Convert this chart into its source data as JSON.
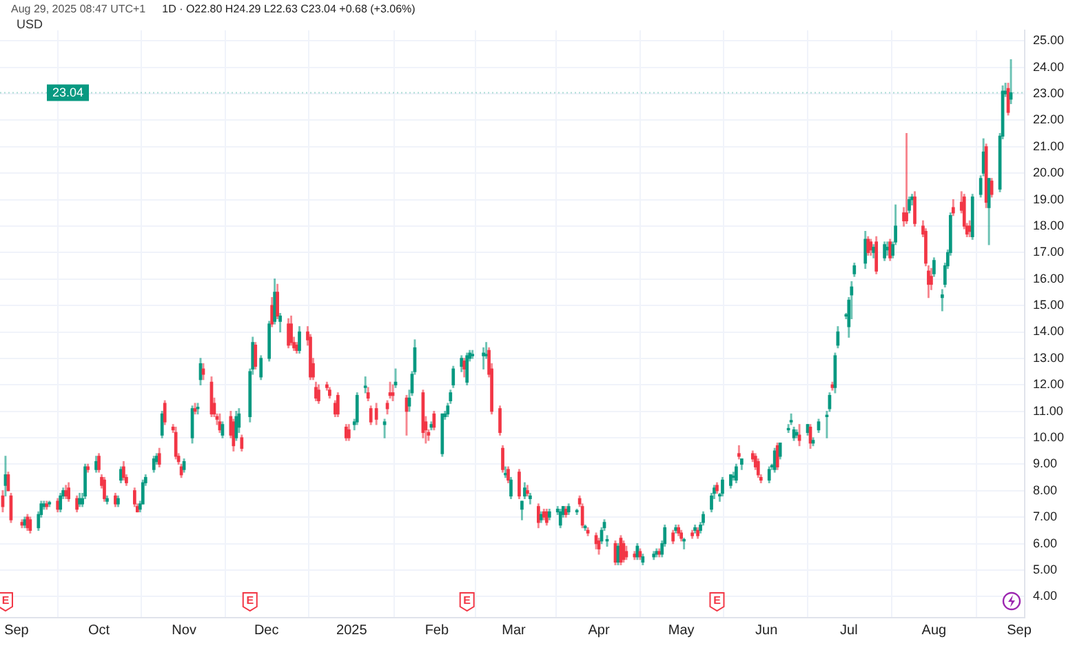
{
  "chart_data": {
    "type": "candlestick",
    "subtitle": "1D · O22.80 H24.29 L22.63 C23.04 +0.68 (+3.06%)",
    "ylabel": "USD",
    "annotations": [
      "Aug 29, 2025 08:47 UTC+1",
      {
        "text": "E",
        "x": "2024-08-28"
      },
      {
        "text": "E",
        "x": "2024-11-25"
      },
      {
        "text": "E",
        "x": "2025-02-12"
      },
      {
        "text": "E",
        "x": "2025-05-14"
      }
    ],
    "ref_lines": [
      {
        "axis": "y",
        "value": 23.04,
        "label": "23.04",
        "color": "#089981",
        "line_style": "dotted"
      }
    ],
    "grid": true,
    "xlim": [
      "2024-08-26",
      "2025-09-03"
    ],
    "xticks": [
      {
        "value": "2024-09-01",
        "label": "Sep"
      },
      {
        "value": "2024-10-01",
        "label": "Oct"
      },
      {
        "value": "2024-11-01",
        "label": "Nov"
      },
      {
        "value": "2024-12-01",
        "label": "Dec"
      },
      {
        "value": "2025-01-01",
        "label": "2025"
      },
      {
        "value": "2025-02-01",
        "label": "Feb"
      },
      {
        "value": "2025-03-01",
        "label": "Mar"
      },
      {
        "value": "2025-04-01",
        "label": "Apr"
      },
      {
        "value": "2025-05-01",
        "label": "May"
      },
      {
        "value": "2025-06-01",
        "label": "Jun"
      },
      {
        "value": "2025-07-01",
        "label": "Jul"
      },
      {
        "value": "2025-08-01",
        "label": "Aug"
      },
      {
        "value": "2025-09-01",
        "label": "Sep"
      }
    ],
    "ylim": [
      3.2,
      25.4
    ],
    "yticks": [
      {
        "value": 4,
        "label": "4.00"
      },
      {
        "value": 5,
        "label": "5.00"
      },
      {
        "value": 6,
        "label": "6.00"
      },
      {
        "value": 7,
        "label": "7.00"
      },
      {
        "value": 8,
        "label": "8.00"
      },
      {
        "value": 9,
        "label": "9.00"
      },
      {
        "value": 10,
        "label": "10.00"
      },
      {
        "value": 11,
        "label": "11.00"
      },
      {
        "value": 12,
        "label": "12.00"
      },
      {
        "value": 13,
        "label": "13.00"
      },
      {
        "value": 14,
        "label": "14.00"
      },
      {
        "value": 15,
        "label": "15.00"
      },
      {
        "value": 16,
        "label": "16.00"
      },
      {
        "value": 17,
        "label": "17.00"
      },
      {
        "value": 18,
        "label": "18.00"
      },
      {
        "value": 19,
        "label": "19.00"
      },
      {
        "value": 20,
        "label": "20.00"
      },
      {
        "value": 21,
        "label": "21.00"
      },
      {
        "value": 22,
        "label": "22.00"
      },
      {
        "value": 23,
        "label": "23.00"
      },
      {
        "value": 24,
        "label": "24.00"
      },
      {
        "value": 25,
        "label": "25.00"
      }
    ],
    "x": [
      "2024-08-27",
      "2024-08-28",
      "2024-08-29",
      "2024-08-30",
      "2024-09-03",
      "2024-09-04",
      "2024-09-05",
      "2024-09-06",
      "2024-09-09",
      "2024-09-10",
      "2024-09-11",
      "2024-09-12",
      "2024-09-13",
      "2024-09-16",
      "2024-09-17",
      "2024-09-18",
      "2024-09-19",
      "2024-09-20",
      "2024-09-23",
      "2024-09-24",
      "2024-09-25",
      "2024-09-26",
      "2024-09-27",
      "2024-09-30",
      "2024-10-01",
      "2024-10-02",
      "2024-10-03",
      "2024-10-04",
      "2024-10-07",
      "2024-10-08",
      "2024-10-09",
      "2024-10-10",
      "2024-10-11",
      "2024-10-14",
      "2024-10-15",
      "2024-10-16",
      "2024-10-17",
      "2024-10-18",
      "2024-10-21",
      "2024-10-22",
      "2024-10-23",
      "2024-10-24",
      "2024-10-25",
      "2024-10-28",
      "2024-10-29",
      "2024-10-30",
      "2024-10-31",
      "2024-11-01",
      "2024-11-04",
      "2024-11-05",
      "2024-11-06",
      "2024-11-07",
      "2024-11-08",
      "2024-11-11",
      "2024-11-12",
      "2024-11-13",
      "2024-11-14",
      "2024-11-15",
      "2024-11-18",
      "2024-11-19",
      "2024-11-20",
      "2024-11-21",
      "2024-11-22",
      "2024-11-25",
      "2024-11-26",
      "2024-11-27",
      "2024-11-29",
      "2024-12-02",
      "2024-12-03",
      "2024-12-04",
      "2024-12-05",
      "2024-12-06",
      "2024-12-09",
      "2024-12-10",
      "2024-12-11",
      "2024-12-12",
      "2024-12-13",
      "2024-12-16",
      "2024-12-17",
      "2024-12-18",
      "2024-12-19",
      "2024-12-20",
      "2024-12-23",
      "2024-12-24",
      "2024-12-26",
      "2024-12-27",
      "2024-12-30",
      "2024-12-31",
      "2025-01-02",
      "2025-01-03",
      "2025-01-06",
      "2025-01-07",
      "2025-01-08",
      "2025-01-10",
      "2025-01-13",
      "2025-01-14",
      "2025-01-15",
      "2025-01-16",
      "2025-01-17",
      "2025-01-21",
      "2025-01-22",
      "2025-01-23",
      "2025-01-24",
      "2025-01-27",
      "2025-01-28",
      "2025-01-29",
      "2025-01-30",
      "2025-01-31",
      "2025-02-03",
      "2025-02-04",
      "2025-02-05",
      "2025-02-06",
      "2025-02-07",
      "2025-02-10",
      "2025-02-11",
      "2025-02-12",
      "2025-02-13",
      "2025-02-14",
      "2025-02-18",
      "2025-02-19",
      "2025-02-20",
      "2025-02-21",
      "2025-02-24",
      "2025-02-25",
      "2025-02-26",
      "2025-02-27",
      "2025-02-28",
      "2025-03-03",
      "2025-03-04",
      "2025-03-05",
      "2025-03-06",
      "2025-03-07",
      "2025-03-10",
      "2025-03-11",
      "2025-03-12",
      "2025-03-13",
      "2025-03-14",
      "2025-03-17",
      "2025-03-18",
      "2025-03-19",
      "2025-03-20",
      "2025-03-21",
      "2025-03-24",
      "2025-03-25",
      "2025-03-26",
      "2025-03-27",
      "2025-03-28",
      "2025-03-31",
      "2025-04-01",
      "2025-04-02",
      "2025-04-03",
      "2025-04-04",
      "2025-04-07",
      "2025-04-08",
      "2025-04-09",
      "2025-04-10",
      "2025-04-11",
      "2025-04-14",
      "2025-04-15",
      "2025-04-16",
      "2025-04-17",
      "2025-04-21",
      "2025-04-22",
      "2025-04-23",
      "2025-04-24",
      "2025-04-25",
      "2025-04-28",
      "2025-04-29",
      "2025-04-30",
      "2025-05-01",
      "2025-05-02",
      "2025-05-05",
      "2025-05-06",
      "2025-05-07",
      "2025-05-08",
      "2025-05-09",
      "2025-05-12",
      "2025-05-13",
      "2025-05-14",
      "2025-05-15",
      "2025-05-16",
      "2025-05-19",
      "2025-05-20",
      "2025-05-21",
      "2025-05-22",
      "2025-05-23",
      "2025-05-27",
      "2025-05-28",
      "2025-05-29",
      "2025-05-30",
      "2025-06-02",
      "2025-06-03",
      "2025-06-04",
      "2025-06-05",
      "2025-06-06",
      "2025-06-09",
      "2025-06-10",
      "2025-06-11",
      "2025-06-12",
      "2025-06-13",
      "2025-06-16",
      "2025-06-17",
      "2025-06-18",
      "2025-06-20",
      "2025-06-23",
      "2025-06-24",
      "2025-06-25",
      "2025-06-26",
      "2025-06-27",
      "2025-06-30",
      "2025-07-01",
      "2025-07-02",
      "2025-07-03",
      "2025-07-07",
      "2025-07-08",
      "2025-07-09",
      "2025-07-10",
      "2025-07-11",
      "2025-07-14",
      "2025-07-15",
      "2025-07-16",
      "2025-07-17",
      "2025-07-18",
      "2025-07-21",
      "2025-07-22",
      "2025-07-23",
      "2025-07-24",
      "2025-07-25",
      "2025-07-28",
      "2025-07-29",
      "2025-07-30",
      "2025-07-31",
      "2025-08-01",
      "2025-08-04",
      "2025-08-05",
      "2025-08-06",
      "2025-08-07",
      "2025-08-08",
      "2025-08-11",
      "2025-08-12",
      "2025-08-13",
      "2025-08-14",
      "2025-08-15",
      "2025-08-18",
      "2025-08-19",
      "2025-08-20",
      "2025-08-21",
      "2025-08-22",
      "2025-08-25",
      "2025-08-26",
      "2025-08-27",
      "2025-08-28",
      "2025-08-29"
    ],
    "ohlc": [
      [
        7.8,
        8.0,
        7.2,
        7.4
      ],
      [
        8.2,
        9.3,
        7.8,
        8.6
      ],
      [
        8.6,
        8.7,
        8.0,
        8.0
      ],
      [
        7.8,
        7.9,
        6.8,
        6.9
      ],
      [
        6.8,
        6.9,
        6.6,
        6.7
      ],
      [
        6.7,
        7.0,
        6.6,
        6.9
      ],
      [
        7.0,
        7.1,
        6.5,
        6.6
      ],
      [
        6.9,
        7.0,
        6.4,
        6.5
      ],
      [
        6.6,
        7.2,
        6.5,
        7.1
      ],
      [
        7.1,
        7.6,
        7.0,
        7.5
      ],
      [
        7.4,
        7.6,
        7.3,
        7.5
      ],
      [
        7.5,
        7.6,
        7.3,
        7.4
      ],
      [
        7.5,
        7.6,
        7.4,
        7.5
      ],
      [
        7.6,
        7.7,
        7.2,
        7.3
      ],
      [
        7.3,
        7.9,
        7.2,
        7.8
      ],
      [
        7.8,
        8.1,
        7.7,
        8.0
      ],
      [
        8.0,
        8.2,
        7.7,
        7.8
      ],
      [
        8.1,
        8.3,
        7.6,
        7.7
      ],
      [
        7.7,
        7.8,
        7.2,
        7.3
      ],
      [
        7.5,
        7.9,
        7.4,
        7.7
      ],
      [
        7.5,
        7.9,
        7.4,
        7.7
      ],
      [
        7.8,
        9.0,
        7.7,
        8.9
      ],
      [
        8.9,
        9.0,
        8.7,
        8.8
      ],
      [
        8.8,
        9.3,
        8.7,
        9.1
      ],
      [
        9.3,
        9.4,
        8.7,
        8.8
      ],
      [
        8.5,
        8.6,
        8.1,
        8.2
      ],
      [
        8.4,
        8.5,
        7.6,
        7.7
      ],
      [
        7.6,
        7.8,
        7.5,
        7.7
      ],
      [
        7.8,
        7.9,
        7.4,
        7.5
      ],
      [
        7.5,
        7.8,
        7.4,
        7.7
      ],
      [
        8.4,
        8.9,
        8.3,
        8.8
      ],
      [
        8.9,
        9.1,
        8.4,
        8.5
      ],
      [
        8.5,
        8.6,
        8.2,
        8.3
      ],
      [
        8.0,
        8.1,
        7.4,
        7.5
      ],
      [
        7.4,
        7.5,
        7.2,
        7.2
      ],
      [
        7.3,
        7.6,
        7.2,
        7.5
      ],
      [
        7.5,
        8.4,
        7.5,
        8.3
      ],
      [
        8.3,
        8.6,
        8.2,
        8.5
      ],
      [
        8.8,
        9.3,
        8.7,
        9.2
      ],
      [
        9.1,
        9.4,
        9.0,
        9.3
      ],
      [
        9.4,
        9.6,
        8.9,
        9.0
      ],
      [
        10.1,
        11.0,
        10.0,
        10.9
      ],
      [
        11.3,
        11.4,
        10.5,
        10.6
      ],
      [
        10.4,
        10.5,
        10.2,
        10.3
      ],
      [
        10.2,
        10.4,
        9.2,
        9.3
      ],
      [
        9.3,
        9.4,
        9.0,
        9.1
      ],
      [
        8.9,
        9.0,
        8.5,
        8.6
      ],
      [
        8.8,
        9.2,
        8.7,
        9.1
      ],
      [
        10.0,
        11.2,
        9.8,
        11.1
      ],
      [
        11.1,
        11.3,
        10.9,
        11.0
      ],
      [
        11.1,
        11.3,
        10.9,
        11.1
      ],
      [
        12.2,
        13.0,
        12.0,
        12.8
      ],
      [
        12.6,
        12.8,
        12.2,
        12.4
      ],
      [
        12.1,
        12.3,
        10.8,
        10.9
      ],
      [
        11.3,
        11.5,
        10.8,
        10.9
      ],
      [
        10.8,
        10.9,
        10.5,
        10.7
      ],
      [
        10.6,
        10.9,
        10.2,
        10.3
      ],
      [
        10.1,
        10.6,
        10.0,
        10.5
      ],
      [
        10.8,
        11.0,
        10.0,
        10.1
      ],
      [
        10.6,
        10.7,
        9.5,
        9.7
      ],
      [
        10.0,
        11.0,
        9.9,
        10.8
      ],
      [
        10.4,
        11.1,
        10.2,
        10.9
      ],
      [
        10.0,
        10.1,
        9.5,
        9.6
      ],
      [
        10.8,
        12.6,
        10.6,
        12.5
      ],
      [
        12.6,
        13.8,
        12.4,
        13.6
      ],
      [
        13.5,
        13.6,
        12.6,
        12.7
      ],
      [
        12.3,
        13.1,
        12.2,
        13.0
      ],
      [
        13.0,
        14.4,
        12.9,
        14.3
      ],
      [
        15.0,
        15.3,
        14.2,
        14.3
      ],
      [
        14.4,
        16.0,
        14.3,
        15.5
      ],
      [
        15.5,
        15.8,
        14.5,
        14.6
      ],
      [
        14.4,
        14.7,
        14.0,
        14.6
      ],
      [
        14.3,
        14.5,
        13.4,
        13.5
      ],
      [
        14.3,
        14.6,
        13.5,
        13.6
      ],
      [
        13.6,
        13.8,
        13.3,
        13.4
      ],
      [
        13.5,
        13.6,
        13.2,
        13.3
      ],
      [
        13.3,
        14.2,
        13.2,
        14.0
      ],
      [
        14.0,
        14.2,
        13.5,
        13.7
      ],
      [
        13.8,
        13.9,
        12.2,
        12.3
      ],
      [
        12.8,
        13.0,
        12.2,
        12.3
      ],
      [
        11.9,
        12.1,
        11.4,
        11.5
      ],
      [
        11.8,
        12.0,
        11.3,
        11.4
      ],
      [
        12.0,
        12.1,
        11.8,
        11.9
      ],
      [
        11.8,
        11.9,
        11.5,
        11.6
      ],
      [
        11.3,
        11.4,
        10.8,
        10.9
      ],
      [
        11.6,
        11.7,
        10.8,
        10.9
      ],
      [
        10.4,
        10.5,
        9.9,
        10.0
      ],
      [
        10.3,
        10.5,
        9.9,
        10.0
      ],
      [
        10.5,
        10.7,
        10.3,
        10.6
      ],
      [
        10.6,
        11.7,
        10.5,
        11.6
      ],
      [
        11.9,
        12.3,
        11.7,
        11.9
      ],
      [
        11.7,
        11.9,
        11.4,
        11.5
      ],
      [
        11.1,
        11.2,
        10.5,
        10.6
      ],
      [
        11.1,
        11.3,
        10.5,
        10.7
      ],
      [
        10.5,
        10.7,
        10.0,
        10.6
      ],
      [
        11.3,
        11.4,
        10.9,
        11.1
      ],
      [
        11.7,
        12.1,
        11.5,
        11.6
      ],
      [
        11.7,
        12.0,
        11.4,
        11.6
      ],
      [
        12.0,
        12.6,
        11.9,
        12.1
      ],
      [
        11.5,
        11.6,
        10.1,
        11.0
      ],
      [
        11.2,
        11.8,
        11.0,
        11.5
      ],
      [
        11.7,
        12.5,
        11.6,
        12.4
      ],
      [
        12.5,
        13.7,
        12.4,
        13.4
      ],
      [
        11.7,
        11.8,
        10.0,
        10.2
      ],
      [
        10.6,
        10.8,
        9.8,
        10.3
      ],
      [
        10.2,
        10.3,
        9.9,
        10.1
      ],
      [
        10.4,
        10.6,
        10.3,
        10.5
      ],
      [
        10.9,
        11.0,
        10.3,
        10.4
      ],
      [
        9.4,
        10.9,
        9.3,
        10.9
      ],
      [
        10.8,
        11.0,
        10.7,
        10.9
      ],
      [
        10.9,
        11.3,
        10.8,
        11.2
      ],
      [
        11.4,
        11.8,
        11.3,
        11.7
      ],
      [
        12.0,
        12.7,
        11.9,
        12.6
      ],
      [
        12.7,
        13.1,
        12.5,
        13.0
      ],
      [
        12.9,
        13.0,
        12.3,
        12.6
      ],
      [
        12.1,
        13.2,
        12.0,
        13.1
      ],
      [
        13.0,
        13.3,
        12.9,
        13.2
      ],
      [
        13.1,
        13.3,
        13.0,
        13.1
      ],
      [
        13.1,
        13.4,
        12.6,
        13.2
      ],
      [
        13.1,
        13.6,
        13.0,
        13.1
      ],
      [
        13.3,
        13.4,
        12.3,
        12.4
      ],
      [
        12.6,
        12.8,
        10.9,
        11.0
      ],
      [
        11.1,
        11.2,
        10.1,
        10.2
      ],
      [
        9.6,
        9.7,
        8.7,
        8.8
      ],
      [
        8.6,
        8.9,
        8.5,
        8.6
      ],
      [
        8.8,
        8.9,
        8.3,
        8.4
      ],
      [
        7.8,
        8.5,
        7.7,
        8.4
      ],
      [
        8.7,
        8.8,
        7.7,
        7.8
      ],
      [
        7.3,
        7.6,
        6.9,
        7.6
      ],
      [
        7.8,
        8.3,
        7.7,
        8.1
      ],
      [
        8.0,
        8.2,
        7.8,
        7.9
      ],
      [
        7.7,
        7.9,
        7.5,
        7.8
      ],
      [
        7.4,
        7.5,
        6.6,
        6.8
      ],
      [
        6.9,
        7.2,
        6.8,
        7.1
      ],
      [
        7.2,
        7.3,
        6.9,
        7.0
      ],
      [
        7.2,
        7.3,
        6.7,
        6.8
      ],
      [
        7.0,
        7.3,
        6.9,
        7.2
      ],
      [
        7.2,
        7.4,
        7.1,
        7.3
      ],
      [
        6.7,
        7.3,
        6.6,
        7.2
      ],
      [
        7.1,
        7.4,
        7.0,
        7.4
      ],
      [
        7.3,
        7.4,
        7.0,
        7.1
      ],
      [
        7.2,
        7.5,
        7.1,
        7.4
      ],
      [
        7.2,
        7.3,
        7.1,
        7.2
      ],
      [
        7.7,
        7.8,
        7.4,
        7.5
      ],
      [
        7.4,
        7.5,
        6.6,
        6.7
      ],
      [
        6.6,
        6.7,
        6.5,
        6.6
      ],
      [
        6.5,
        6.6,
        6.3,
        6.4
      ],
      [
        6.3,
        6.4,
        5.8,
        6.0
      ],
      [
        6.1,
        6.2,
        5.6,
        5.8
      ],
      [
        6.1,
        6.6,
        6.0,
        6.5
      ],
      [
        6.6,
        6.9,
        6.5,
        6.8
      ],
      [
        6.1,
        6.3,
        5.9,
        6.1
      ],
      [
        6.0,
        6.1,
        5.2,
        5.3
      ],
      [
        5.3,
        6.0,
        5.2,
        5.9
      ],
      [
        6.2,
        6.3,
        5.2,
        5.3
      ],
      [
        6.0,
        6.1,
        5.3,
        5.4
      ],
      [
        5.7,
        5.9,
        5.4,
        5.5
      ],
      [
        5.6,
        5.7,
        5.4,
        5.5
      ],
      [
        5.5,
        6.0,
        5.4,
        5.9
      ],
      [
        5.7,
        5.8,
        5.4,
        5.5
      ],
      [
        5.3,
        5.6,
        5.2,
        5.5
      ],
      [
        5.5,
        5.7,
        5.4,
        5.6
      ],
      [
        5.6,
        5.8,
        5.5,
        5.7
      ],
      [
        5.7,
        5.8,
        5.5,
        5.6
      ],
      [
        5.6,
        6.1,
        5.5,
        6.0
      ],
      [
        6.0,
        6.7,
        5.9,
        6.6
      ],
      [
        6.4,
        6.5,
        6.0,
        6.1
      ],
      [
        6.5,
        6.7,
        6.4,
        6.6
      ],
      [
        6.6,
        6.7,
        6.3,
        6.4
      ],
      [
        6.4,
        6.5,
        6.1,
        6.2
      ],
      [
        6.1,
        6.2,
        5.8,
        6.1
      ],
      [
        6.4,
        6.5,
        6.2,
        6.3
      ],
      [
        6.5,
        6.7,
        6.4,
        6.6
      ],
      [
        6.5,
        6.6,
        6.2,
        6.3
      ],
      [
        6.5,
        6.8,
        6.4,
        6.7
      ],
      [
        6.8,
        7.2,
        6.7,
        7.1
      ],
      [
        7.3,
        7.9,
        7.2,
        7.8
      ],
      [
        7.9,
        8.2,
        7.7,
        8.1
      ],
      [
        8.2,
        8.3,
        7.9,
        8.0
      ],
      [
        7.8,
        7.9,
        7.6,
        7.8
      ],
      [
        7.9,
        8.5,
        7.8,
        8.4
      ],
      [
        8.2,
        8.6,
        8.1,
        8.6
      ],
      [
        8.5,
        8.7,
        8.4,
        8.5
      ],
      [
        8.4,
        9.0,
        8.3,
        8.9
      ],
      [
        9.4,
        9.7,
        9.2,
        9.3
      ],
      [
        9.0,
        9.2,
        8.8,
        9.2
      ],
      [
        9.4,
        9.5,
        9.1,
        9.2
      ],
      [
        9.3,
        9.4,
        8.8,
        8.9
      ],
      [
        9.1,
        9.2,
        8.5,
        8.6
      ],
      [
        8.5,
        8.6,
        8.3,
        8.4
      ],
      [
        8.4,
        8.9,
        8.3,
        8.8
      ],
      [
        8.9,
        9.0,
        8.8,
        8.9
      ],
      [
        8.8,
        9.6,
        8.7,
        9.5
      ],
      [
        9.7,
        9.8,
        8.8,
        8.9
      ],
      [
        9.3,
        9.8,
        9.2,
        9.8
      ],
      [
        10.3,
        10.5,
        10.2,
        10.3
      ],
      [
        10.6,
        10.9,
        10.5,
        10.6
      ],
      [
        10.0,
        10.4,
        9.9,
        10.3
      ],
      [
        10.1,
        10.3,
        10.0,
        10.2
      ],
      [
        10.1,
        10.5,
        9.7,
        9.9
      ],
      [
        10.2,
        10.5,
        10.1,
        10.5
      ],
      [
        10.4,
        10.5,
        9.6,
        9.8
      ],
      [
        9.8,
        10.0,
        9.7,
        9.9
      ],
      [
        10.3,
        10.7,
        10.2,
        10.6
      ],
      [
        10.8,
        11.0,
        10.0,
        10.8
      ],
      [
        11.1,
        11.7,
        11.0,
        11.6
      ],
      [
        12.0,
        12.1,
        11.8,
        11.9
      ],
      [
        11.9,
        13.2,
        11.7,
        13.1
      ],
      [
        13.5,
        14.2,
        13.4,
        14.0
      ],
      [
        14.6,
        14.7,
        14.5,
        14.6
      ],
      [
        14.2,
        15.3,
        13.8,
        15.2
      ],
      [
        15.4,
        15.9,
        14.5,
        15.7
      ],
      [
        16.2,
        16.6,
        16.1,
        16.5
      ],
      [
        16.6,
        17.8,
        16.4,
        17.5
      ],
      [
        17.5,
        17.6,
        16.9,
        17.0
      ],
      [
        17.4,
        17.5,
        16.9,
        17.1
      ],
      [
        17.0,
        17.3,
        16.8,
        17.2
      ],
      [
        17.4,
        17.6,
        16.2,
        16.3
      ],
      [
        16.8,
        17.4,
        16.7,
        17.3
      ],
      [
        17.1,
        17.4,
        16.9,
        17.2
      ],
      [
        17.4,
        17.5,
        16.7,
        16.8
      ],
      [
        16.9,
        17.4,
        16.8,
        17.3
      ],
      [
        17.4,
        18.8,
        17.3,
        18.0
      ],
      [
        18.5,
        18.7,
        18.0,
        18.2
      ],
      [
        18.5,
        21.5,
        18.1,
        18.2
      ],
      [
        18.6,
        19.1,
        18.5,
        19.0
      ],
      [
        19.0,
        19.2,
        18.8,
        19.1
      ],
      [
        19.1,
        19.3,
        18.0,
        18.1
      ],
      [
        18.0,
        18.2,
        17.6,
        17.7
      ],
      [
        17.8,
        17.9,
        16.5,
        16.6
      ],
      [
        16.3,
        16.5,
        15.3,
        15.8
      ],
      [
        16.1,
        16.4,
        15.6,
        15.8
      ],
      [
        16.2,
        16.8,
        16.1,
        16.7
      ],
      [
        15.3,
        15.6,
        14.8,
        15.4
      ],
      [
        15.8,
        16.6,
        15.7,
        16.5
      ],
      [
        16.5,
        17.1,
        16.4,
        17.0
      ],
      [
        17.0,
        18.5,
        16.9,
        18.4
      ],
      [
        18.7,
        19.0,
        18.4,
        18.5
      ],
      [
        18.9,
        19.3,
        18.5,
        18.6
      ],
      [
        19.1,
        19.2,
        17.9,
        18.0
      ],
      [
        18.0,
        18.1,
        17.6,
        17.7
      ],
      [
        18.0,
        18.2,
        17.6,
        17.8
      ],
      [
        17.6,
        19.2,
        17.5,
        19.1
      ],
      [
        19.2,
        19.9,
        19.1,
        19.8
      ],
      [
        20.0,
        21.3,
        19.9,
        20.8
      ],
      [
        21.0,
        21.1,
        18.7,
        18.9
      ],
      [
        18.7,
        19.8,
        17.3,
        19.8
      ],
      [
        19.7,
        19.8,
        19.1,
        19.2
      ],
      [
        19.4,
        21.5,
        19.3,
        21.4
      ],
      [
        21.4,
        23.3,
        21.3,
        23.1
      ],
      [
        23.0,
        23.4,
        22.9,
        23.1
      ],
      [
        23.2,
        23.4,
        22.2,
        22.3
      ],
      [
        22.8,
        24.29,
        22.63,
        23.04
      ]
    ]
  }
}
